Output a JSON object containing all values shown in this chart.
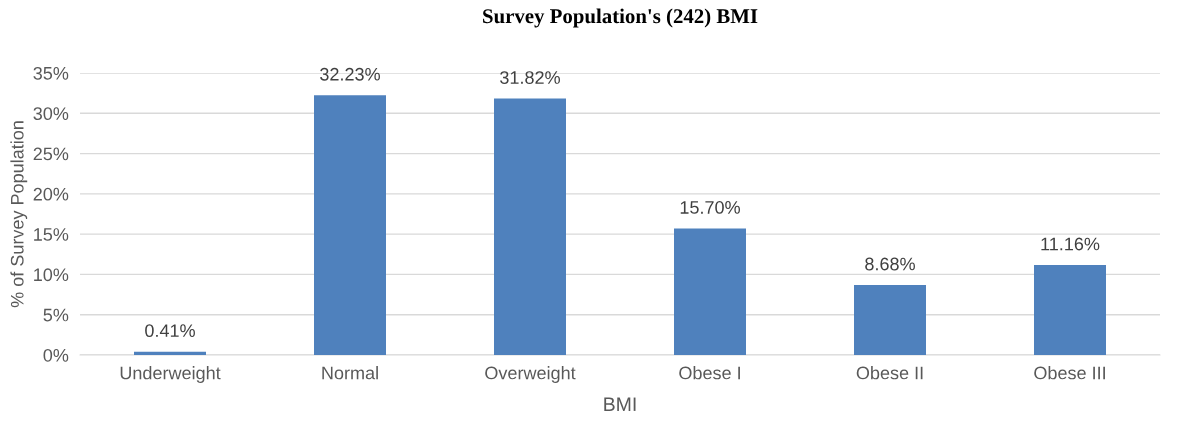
{
  "chart_data": {
    "type": "bar",
    "title": "Survey Population's (242) BMI",
    "xlabel": "BMI",
    "ylabel": "% of Survey Population",
    "categories": [
      "Underweight",
      "Normal",
      "Overweight",
      "Obese I",
      "Obese II",
      "Obese III"
    ],
    "values": [
      0.41,
      32.23,
      31.82,
      15.7,
      8.68,
      11.16
    ],
    "value_labels": [
      "0.41%",
      "32.23%",
      "31.82%",
      "15.70%",
      "8.68%",
      "11.16%"
    ],
    "color": "#4f81bd",
    "ylim": [
      0,
      35
    ],
    "yticks": [
      {
        "value": 0,
        "label": "0%"
      },
      {
        "value": 5,
        "label": "5%"
      },
      {
        "value": 10,
        "label": "10%"
      },
      {
        "value": 15,
        "label": "15%"
      },
      {
        "value": 20,
        "label": "20%"
      },
      {
        "value": 25,
        "label": "25%"
      },
      {
        "value": 30,
        "label": "30%"
      },
      {
        "value": 35,
        "label": "35%"
      }
    ],
    "grid": "y",
    "legend": false
  }
}
